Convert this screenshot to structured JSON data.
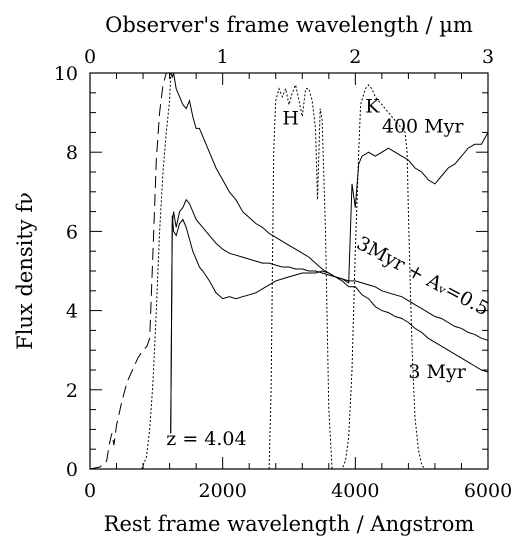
{
  "chart_data": {
    "type": "line",
    "xlabel": "Rest frame wavelength / Angstrom",
    "ylabel": "Flux density fν",
    "top_xlabel": "Observer's frame wavelength / µm",
    "xlim": [
      0,
      6000
    ],
    "ylim": [
      0,
      10
    ],
    "top_xlim": [
      0,
      3
    ],
    "grid": false,
    "x_ticks": [
      0,
      2000,
      4000,
      6000
    ],
    "x_tick_labels": [
      "0",
      "2000",
      "4000",
      "6000"
    ],
    "y_ticks": [
      0,
      2,
      4,
      6,
      8,
      10
    ],
    "y_tick_labels": [
      "0",
      "2",
      "4",
      "6",
      "8",
      "10"
    ],
    "top_ticks": [
      0,
      1,
      2,
      3
    ],
    "top_tick_labels": [
      "0",
      "1",
      "2",
      "3"
    ],
    "annotations": [
      {
        "id": "lbl-400",
        "text": "400 Myr",
        "x": 4400,
        "y": 8.5
      },
      {
        "id": "lbl-3dust",
        "text": "3Myr + Aᵥ=0.5",
        "x": 4000,
        "y": 5.6
      },
      {
        "id": "lbl-3",
        "text": "3 Myr",
        "x": 4800,
        "y": 2.3
      },
      {
        "id": "lbl-z",
        "text": "z = 4.04",
        "x": 1150,
        "y": 0.6
      },
      {
        "id": "lbl-H",
        "text": "H",
        "x": 2900,
        "y": 8.7
      },
      {
        "id": "lbl-K",
        "text": "K",
        "x": 4150,
        "y": 9.0
      }
    ],
    "series": [
      {
        "name": "400 Myr",
        "style": "solid",
        "x": [
          1216,
          1240,
          1260,
          1300,
          1350,
          1400,
          1450,
          1500,
          1550,
          1600,
          1650,
          1700,
          1800,
          1900,
          2000,
          2100,
          2200,
          2300,
          2400,
          2500,
          2600,
          2700,
          2800,
          2900,
          3000,
          3100,
          3200,
          3300,
          3400,
          3500,
          3600,
          3700,
          3800,
          3900,
          3950,
          4000,
          4050,
          4100,
          4200,
          4300,
          4400,
          4500,
          4600,
          4700,
          4800,
          4900,
          5000,
          5100,
          5200,
          5300,
          5400,
          5500,
          5600,
          5700,
          5800,
          5900,
          6000
        ],
        "y": [
          10.0,
          9.9,
          10.0,
          9.6,
          9.4,
          9.2,
          9.1,
          9.3,
          8.9,
          8.6,
          8.6,
          8.4,
          8.0,
          7.6,
          7.3,
          7.0,
          6.8,
          6.5,
          6.35,
          6.2,
          6.1,
          5.95,
          5.85,
          5.75,
          5.65,
          5.55,
          5.45,
          5.35,
          5.2,
          5.05,
          4.95,
          4.85,
          4.8,
          4.7,
          7.2,
          6.6,
          7.7,
          7.9,
          8.0,
          7.9,
          8.0,
          8.1,
          8.0,
          7.9,
          7.8,
          7.6,
          7.5,
          7.3,
          7.2,
          7.4,
          7.6,
          7.7,
          7.9,
          8.1,
          8.2,
          8.2,
          8.5
        ]
      },
      {
        "name": "3Myr + Av=0.5",
        "style": "solid",
        "x": [
          1216,
          1240,
          1260,
          1300,
          1350,
          1400,
          1450,
          1500,
          1550,
          1600,
          1650,
          1700,
          1800,
          1900,
          2000,
          2100,
          2200,
          2300,
          2400,
          2500,
          2600,
          2700,
          2800,
          2900,
          3000,
          3100,
          3200,
          3300,
          3400,
          3500,
          3600,
          3700,
          3800,
          3900,
          4000,
          4100,
          4200,
          4300,
          4400,
          4500,
          4600,
          4700,
          4800,
          4900,
          5000,
          5100,
          5200,
          5300,
          5400,
          5500,
          5600,
          5700,
          5800,
          5900,
          6000
        ],
        "y": [
          0.9,
          6.2,
          6.5,
          6.1,
          6.5,
          6.6,
          6.8,
          6.7,
          6.5,
          6.3,
          6.2,
          6.1,
          5.9,
          5.7,
          5.55,
          5.45,
          5.4,
          5.35,
          5.3,
          5.25,
          5.2,
          5.2,
          5.15,
          5.1,
          5.1,
          5.05,
          5.05,
          5.0,
          5.0,
          4.95,
          4.9,
          4.85,
          4.8,
          4.75,
          4.75,
          4.7,
          4.65,
          4.6,
          4.5,
          4.45,
          4.4,
          4.35,
          4.25,
          4.15,
          4.05,
          3.95,
          3.85,
          3.8,
          3.7,
          3.6,
          3.55,
          3.45,
          3.4,
          3.3,
          3.25
        ]
      },
      {
        "name": "3 Myr",
        "style": "solid",
        "x": [
          1216,
          1240,
          1260,
          1300,
          1350,
          1400,
          1450,
          1500,
          1550,
          1600,
          1650,
          1700,
          1800,
          1900,
          2000,
          2100,
          2200,
          2300,
          2400,
          2500,
          2600,
          2700,
          2800,
          2900,
          3000,
          3100,
          3200,
          3300,
          3400,
          3500,
          3600,
          3700,
          3800,
          3900,
          4000,
          4100,
          4200,
          4300,
          4400,
          4500,
          4600,
          4700,
          4800,
          4900,
          5000,
          5100,
          5200,
          5300,
          5400,
          5500,
          5600,
          5700,
          5800,
          5900,
          6000
        ],
        "y": [
          0.9,
          6.4,
          6.0,
          5.9,
          6.2,
          6.3,
          6.1,
          5.8,
          5.5,
          5.3,
          5.1,
          5.0,
          4.75,
          4.45,
          4.3,
          4.35,
          4.3,
          4.35,
          4.4,
          4.45,
          4.55,
          4.65,
          4.75,
          4.8,
          4.85,
          4.9,
          4.95,
          4.95,
          4.95,
          5.0,
          4.95,
          4.85,
          4.75,
          4.6,
          4.6,
          4.4,
          4.3,
          4.1,
          4.0,
          3.95,
          3.85,
          3.8,
          3.7,
          3.55,
          3.45,
          3.3,
          3.2,
          3.1,
          3.0,
          2.9,
          2.8,
          2.7,
          2.6,
          2.5,
          2.45
        ]
      },
      {
        "name": "long-dashed",
        "style": "dashed",
        "x": [
          0,
          150,
          250,
          300,
          330,
          360,
          400,
          480,
          560,
          640,
          720,
          800,
          860,
          900,
          950,
          1000,
          1050,
          1100,
          1150,
          1200,
          1216
        ],
        "y": [
          0.0,
          0.05,
          0.2,
          0.7,
          0.9,
          0.6,
          1.1,
          1.7,
          2.2,
          2.5,
          2.8,
          3.0,
          3.1,
          3.3,
          5.5,
          7.8,
          9.0,
          9.7,
          10.0,
          10.0,
          10.0
        ]
      },
      {
        "name": "dotted rising",
        "style": "dotted",
        "x": [
          780,
          850,
          900,
          950,
          1000,
          1050,
          1100,
          1150,
          1200,
          1216
        ],
        "y": [
          0.0,
          0.3,
          1.0,
          2.2,
          4.0,
          6.0,
          7.5,
          8.5,
          9.3,
          10.0
        ]
      },
      {
        "name": "H filter",
        "style": "dotted",
        "x": [
          2700,
          2730,
          2770,
          2800,
          2850,
          2900,
          2950,
          3000,
          3050,
          3100,
          3150,
          3200,
          3250,
          3300,
          3350,
          3400,
          3430,
          3470,
          3500,
          3550,
          3600,
          3650
        ],
        "y": [
          0.0,
          2.0,
          8.0,
          9.3,
          9.6,
          9.4,
          9.6,
          9.2,
          9.5,
          9.7,
          9.3,
          8.9,
          9.6,
          9.6,
          9.3,
          8.6,
          6.8,
          9.1,
          8.8,
          6.0,
          1.5,
          0.0
        ]
      },
      {
        "name": "K filter",
        "style": "dotted",
        "x": [
          3650,
          3700,
          3750,
          3800,
          3850,
          3900,
          3950,
          4000,
          4050,
          4080,
          4150,
          4200,
          4250,
          4300,
          4400,
          4500,
          4600,
          4700,
          4750,
          4780,
          4800,
          4830,
          4860,
          4900,
          4950,
          5000,
          5050
        ],
        "y": [
          0.0,
          0.0,
          0.0,
          0.0,
          0.2,
          0.8,
          2.5,
          5.5,
          8.0,
          9.2,
          9.6,
          9.7,
          9.6,
          9.4,
          9.2,
          9.0,
          8.8,
          8.6,
          8.5,
          8.0,
          6.5,
          4.5,
          2.8,
          1.3,
          0.5,
          0.1,
          0.0
        ]
      }
    ]
  }
}
